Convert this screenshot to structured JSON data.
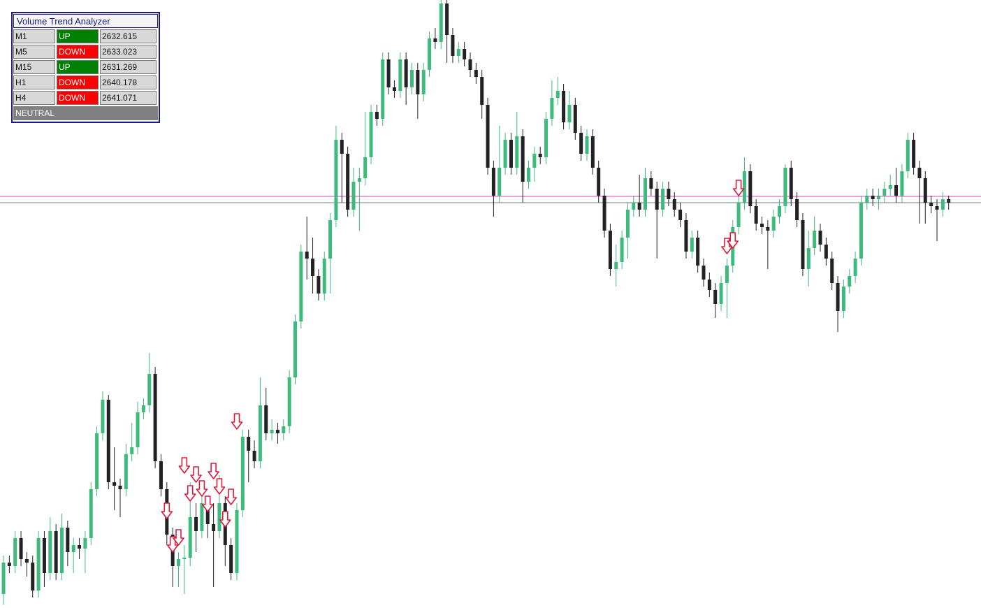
{
  "panel": {
    "title": "Volume Trend Analyzer",
    "rows": [
      [
        "M1",
        "UP",
        "2632.615"
      ],
      [
        "M5",
        "DOWN",
        "2633.023"
      ],
      [
        "M15",
        "UP",
        "2631.269"
      ],
      [
        "H1",
        "DOWN",
        "2640.178"
      ],
      [
        "H4",
        "DOWN",
        "2641.071"
      ]
    ],
    "status_colors": {
      "UP": "#008000",
      "DOWN": "#ff0000"
    },
    "footer": "NEUTRAL"
  },
  "chart_data": {
    "type": "candlestick",
    "ylim": [
      2622.6,
      2640
    ],
    "bull_color": "#3fba7d",
    "bear_color": "#222222",
    "signal_color": "#e0193a",
    "levels": [
      {
        "value": 2634.38,
        "color": "#e040c0"
      },
      {
        "value": 2634.2,
        "color": "#707880"
      }
    ],
    "open": [
      2623.0,
      2623.9,
      2623.8,
      2624.6,
      2624.0,
      2623.9,
      2623.1,
      2624.6,
      2623.6,
      2624.8,
      2623.6,
      2624.9,
      2624.2,
      2624.4,
      2624.3,
      2624.6,
      2626.0,
      2627.6,
      2628.56,
      2626.2,
      2626.1,
      2626.0,
      2627.0,
      2627.2,
      2628.2,
      2628.4,
      2629.3,
      2626.8,
      2626.0,
      2624.7,
      2623.8,
      2624.0,
      2624.04,
      2625.2,
      2624.8,
      2625.6,
      2625.0,
      2624.8,
      2625.6,
      2624.4,
      2623.6,
      2625.4,
      2627.5,
      2627.1,
      2626.8,
      2628.4,
      2627.6,
      2627.7,
      2627.6,
      2627.8,
      2629.2,
      2630.8,
      2632.8,
      2632.6,
      2632.1,
      2631.6,
      2632.6,
      2633.7,
      2636.0,
      2635.6,
      2634.0,
      2634.8,
      2634.9,
      2635.5,
      2636.8,
      2636.6,
      2638.3,
      2637.5,
      2637.4,
      2638.3,
      2637.5,
      2638.0,
      2637.3,
      2638.0,
      2638.9,
      2638.8,
      2639.9,
      2639.0,
      2638.4,
      2638.6,
      2638.3,
      2638.0,
      2637.8,
      2637.0,
      2635.2,
      2634.4,
      2635.2,
      2636.0,
      2635.2,
      2636.1,
      2634.8,
      2635.2,
      2635.6,
      2635.5,
      2636.6,
      2637.2,
      2637.4,
      2636.5,
      2637.0,
      2636.2,
      2635.6,
      2636.1,
      2635.2,
      2634.4,
      2633.4,
      2632.3,
      2632.5,
      2633.2,
      2634.0,
      2634.2,
      2634.0,
      2634.9,
      2634.6,
      2634.0,
      2634.6,
      2634.3,
      2634.0,
      2633.7,
      2632.8,
      2633.2,
      2632.4,
      2632.0,
      2631.7,
      2631.3,
      2631.9,
      2632.4,
      2633.5,
      2634.2,
      2635.1,
      2634.1,
      2633.6,
      2633.5,
      2633.4,
      2633.8,
      2634.1,
      2635.2,
      2634.3,
      2633.7,
      2632.3,
      2632.9,
      2633.4,
      2633.0,
      2632.6,
      2631.9,
      2631.1,
      2631.8,
      2632.1,
      2632.6,
      2634.2,
      2634.4,
      2634.3,
      2634.4,
      2634.6,
      2634.7,
      2634.4,
      2635.1,
      2636.0,
      2635.2,
      2634.9,
      2634.2,
      2634.1,
      2634.0,
      2634.3
    ],
    "high": [
      2624.1,
      2624.1,
      2624.8,
      2624.8,
      2624.2,
      2624.1,
      2624.8,
      2624.8,
      2625.2,
      2625.0,
      2625.3,
      2625.1,
      2624.6,
      2624.6,
      2624.8,
      2626.2,
      2627.8,
      2628.8,
      2628.7,
      2627.2,
      2626.3,
      2627.3,
      2627.9,
      2628.5,
      2628.6,
      2629.9,
      2629.5,
      2627.0,
      2626.2,
      2624.9,
      2624.2,
      2624.4,
      2626.2,
      2625.6,
      2626.0,
      2625.8,
      2625.6,
      2626.4,
      2625.8,
      2624.6,
      2625.6,
      2627.7,
      2627.7,
      2627.4,
      2629.2,
      2628.9,
      2628.0,
      2627.9,
      2628.0,
      2629.4,
      2631.0,
      2633.0,
      2633.8,
      2633.2,
      2632.3,
      2632.8,
      2633.9,
      2636.4,
      2636.2,
      2635.8,
      2635.2,
      2635.2,
      2636.8,
      2637.0,
      2637.0,
      2638.5,
      2638.5,
      2637.7,
      2638.5,
      2638.5,
      2638.2,
      2638.2,
      2638.2,
      2639.1,
      2639.2,
      2640.0,
      2640.0,
      2639.2,
      2638.8,
      2638.8,
      2638.5,
      2638.2,
      2638.0,
      2637.2,
      2635.4,
      2636.4,
      2636.2,
      2636.2,
      2636.8,
      2636.3,
      2635.4,
      2635.8,
      2635.8,
      2636.8,
      2637.7,
      2637.8,
      2637.6,
      2637.4,
      2637.2,
      2636.4,
      2636.3,
      2636.3,
      2635.4,
      2634.6,
      2633.6,
      2633.0,
      2633.4,
      2634.2,
      2634.4,
      2635.0,
      2635.2,
      2635.1,
      2634.8,
      2634.8,
      2634.8,
      2634.5,
      2634.2,
      2633.9,
      2633.4,
      2633.4,
      2632.6,
      2632.2,
      2631.9,
      2632.1,
      2632.6,
      2633.7,
      2634.4,
      2635.5,
      2635.3,
      2634.3,
      2633.8,
      2633.7,
      2634.0,
      2634.3,
      2635.3,
      2635.4,
      2634.5,
      2633.9,
      2633.4,
      2633.8,
      2633.6,
      2633.2,
      2632.8,
      2632.1,
      2632.0,
      2632.3,
      2632.8,
      2634.4,
      2634.6,
      2634.6,
      2634.6,
      2634.8,
      2635.0,
      2635.2,
      2635.3,
      2636.2,
      2636.2,
      2635.4,
      2635.1,
      2634.4,
      2634.3,
      2634.5,
      2634.4
    ],
    "low": [
      2622.7,
      2623.6,
      2623.6,
      2623.8,
      2623.5,
      2622.9,
      2622.9,
      2623.2,
      2623.4,
      2623.4,
      2623.4,
      2623.8,
      2623.6,
      2624.0,
      2623.6,
      2624.4,
      2625.8,
      2627.4,
      2626.0,
      2625.4,
      2625.2,
      2625.8,
      2626.8,
      2627.0,
      2628.0,
      2628.2,
      2626.6,
      2625.8,
      2624.4,
      2623.2,
      2623.2,
      2623.0,
      2623.8,
      2624.2,
      2624.6,
      2624.6,
      2623.2,
      2624.6,
      2623.8,
      2623.4,
      2623.4,
      2625.2,
      2626.2,
      2626.6,
      2626.6,
      2627.4,
      2627.4,
      2627.3,
      2627.4,
      2627.6,
      2629.0,
      2630.6,
      2632.0,
      2631.6,
      2631.4,
      2631.4,
      2631.6,
      2633.5,
      2634.2,
      2633.8,
      2633.8,
      2633.4,
      2634.7,
      2635.3,
      2636.4,
      2636.4,
      2637.3,
      2637.2,
      2637.2,
      2637.0,
      2637.3,
      2636.6,
      2637.1,
      2637.8,
      2638.6,
      2638.6,
      2638.2,
      2638.2,
      2638.2,
      2638.1,
      2637.8,
      2637.6,
      2636.6,
      2635.0,
      2633.8,
      2634.2,
      2635.0,
      2635.0,
      2635.0,
      2634.2,
      2634.6,
      2634.8,
      2635.3,
      2635.3,
      2636.4,
      2637.0,
      2636.3,
      2636.3,
      2636.0,
      2635.4,
      2635.4,
      2635.0,
      2634.2,
      2633.2,
      2632.1,
      2631.8,
      2632.3,
      2632.6,
      2633.8,
      2633.8,
      2633.8,
      2634.4,
      2632.6,
      2633.8,
      2634.1,
      2633.8,
      2633.5,
      2632.6,
      2632.6,
      2632.2,
      2631.8,
      2631.5,
      2630.9,
      2631.1,
      2630.9,
      2632.2,
      2633.3,
      2634.0,
      2633.9,
      2633.4,
      2633.3,
      2632.3,
      2633.2,
      2633.6,
      2633.9,
      2634.1,
      2633.5,
      2632.1,
      2631.8,
      2632.7,
      2632.8,
      2632.4,
      2631.7,
      2630.5,
      2630.9,
      2631.6,
      2631.9,
      2632.4,
      2634.0,
      2634.1,
      2634.0,
      2634.2,
      2634.4,
      2634.2,
      2634.2,
      2634.9,
      2635.0,
      2633.6,
      2633.6,
      2633.9,
      2633.1,
      2633.8,
      2634.0
    ],
    "close": [
      2623.9,
      2623.8,
      2624.6,
      2624.0,
      2623.9,
      2623.1,
      2624.6,
      2623.6,
      2624.8,
      2623.6,
      2624.9,
      2624.2,
      2624.4,
      2624.3,
      2624.6,
      2626.0,
      2627.6,
      2628.56,
      2626.2,
      2626.1,
      2626.0,
      2627.0,
      2627.2,
      2628.2,
      2628.4,
      2629.3,
      2626.8,
      2626.0,
      2624.7,
      2623.8,
      2624.0,
      2624.04,
      2625.2,
      2624.8,
      2625.6,
      2625.0,
      2624.8,
      2625.6,
      2624.4,
      2623.6,
      2625.4,
      2627.5,
      2627.1,
      2626.8,
      2628.4,
      2627.6,
      2627.7,
      2627.6,
      2627.8,
      2629.2,
      2630.8,
      2632.8,
      2632.6,
      2632.1,
      2631.6,
      2632.6,
      2633.7,
      2636.0,
      2635.6,
      2634.0,
      2634.8,
      2634.9,
      2635.5,
      2636.8,
      2636.6,
      2638.3,
      2637.5,
      2637.4,
      2638.3,
      2637.5,
      2638.0,
      2637.3,
      2638.0,
      2638.9,
      2638.8,
      2639.9,
      2639.0,
      2638.4,
      2638.6,
      2638.3,
      2638.0,
      2637.8,
      2637.0,
      2635.2,
      2634.4,
      2635.2,
      2636.0,
      2635.2,
      2636.1,
      2634.8,
      2635.2,
      2635.6,
      2635.5,
      2636.6,
      2637.2,
      2637.4,
      2636.5,
      2637.0,
      2636.2,
      2635.6,
      2636.1,
      2635.2,
      2634.4,
      2633.4,
      2632.3,
      2632.5,
      2633.2,
      2634.0,
      2634.2,
      2634.0,
      2634.9,
      2634.6,
      2634.0,
      2634.6,
      2634.3,
      2634.0,
      2633.7,
      2632.8,
      2633.2,
      2632.4,
      2632.0,
      2631.7,
      2631.3,
      2631.9,
      2632.4,
      2633.5,
      2634.2,
      2635.1,
      2634.1,
      2633.6,
      2633.5,
      2633.4,
      2633.8,
      2634.1,
      2635.2,
      2634.3,
      2633.7,
      2632.3,
      2632.9,
      2633.4,
      2633.0,
      2632.6,
      2631.9,
      2631.1,
      2631.8,
      2632.1,
      2632.6,
      2634.2,
      2634.4,
      2634.3,
      2634.4,
      2634.6,
      2634.7,
      2634.4,
      2635.1,
      2636.0,
      2635.2,
      2634.9,
      2634.2,
      2634.1,
      2634.0,
      2634.3,
      2634.2
    ],
    "signals": [
      {
        "index": 28,
        "price": 2625.16
      },
      {
        "index": 29,
        "price": 2624.2
      },
      {
        "index": 30,
        "price": 2624.4
      },
      {
        "index": 31,
        "price": 2626.46
      },
      {
        "index": 32,
        "price": 2625.66
      },
      {
        "index": 33,
        "price": 2626.2
      },
      {
        "index": 34,
        "price": 2625.8
      },
      {
        "index": 35,
        "price": 2625.36
      },
      {
        "index": 36,
        "price": 2626.3
      },
      {
        "index": 37,
        "price": 2625.86
      },
      {
        "index": 38,
        "price": 2624.92
      },
      {
        "index": 39,
        "price": 2625.56
      },
      {
        "index": 40,
        "price": 2627.72
      },
      {
        "index": 124,
        "price": 2632.74
      },
      {
        "index": 125,
        "price": 2632.9
      },
      {
        "index": 126,
        "price": 2634.4
      }
    ]
  }
}
